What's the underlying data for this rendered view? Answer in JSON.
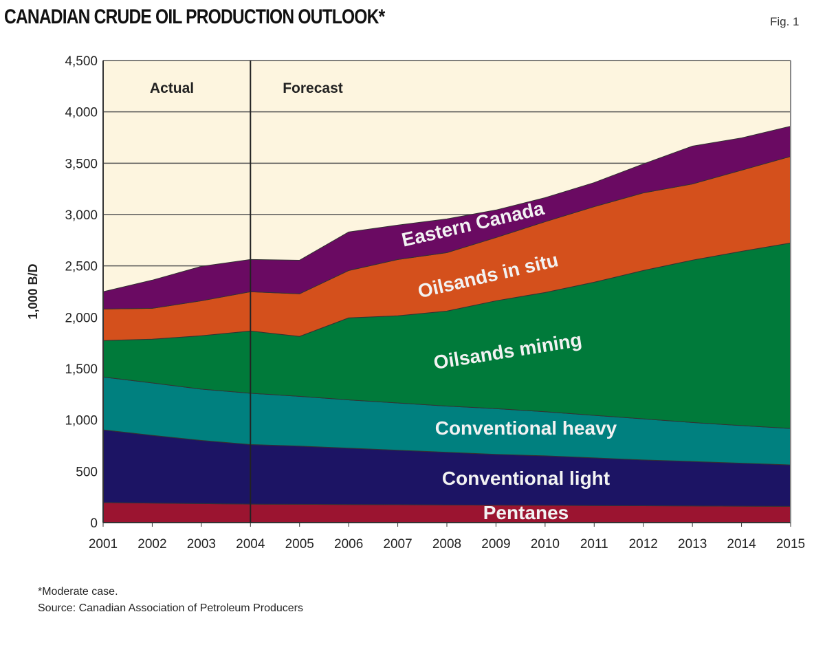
{
  "chart_data": {
    "type": "area",
    "stacked": true,
    "title": "CANADIAN CRUDE OIL PRODUCTION OUTLOOK*",
    "figure_label": "Fig. 1",
    "ylabel": "1,000 B/D",
    "xlabel": "",
    "ylim": [
      0,
      4500
    ],
    "yticks": [
      "0",
      "500",
      "1,000",
      "1,500",
      "2,000",
      "2,500",
      "3,000",
      "3,500",
      "4,000",
      "4,500"
    ],
    "x": [
      "2001",
      "2002",
      "2003",
      "2004",
      "2005",
      "2006",
      "2007",
      "2008",
      "2009",
      "2010",
      "2011",
      "2012",
      "2013",
      "2014",
      "2015"
    ],
    "grid": true,
    "background_color": "#fdf5df",
    "annotations": {
      "actual": "Actual",
      "forecast": "Forecast",
      "divider_year": "2004"
    },
    "series": [
      {
        "name": "Pentanes",
        "color": "#9b1430",
        "values": [
          195,
          190,
          185,
          180,
          178,
          176,
          174,
          172,
          170,
          168,
          166,
          164,
          162,
          160,
          158
        ]
      },
      {
        "name": "Conventional light",
        "color": "#1c1464",
        "values": [
          708,
          660,
          615,
          580,
          567,
          549,
          531,
          513,
          495,
          482,
          464,
          446,
          433,
          418,
          404
        ]
      },
      {
        "name": "Conventional heavy",
        "color": "#00807f",
        "values": [
          515,
          510,
          500,
          500,
          485,
          470,
          460,
          450,
          445,
          430,
          415,
          400,
          380,
          367,
          355
        ]
      },
      {
        "name": "Oilsands mining",
        "color": "#007a3a",
        "values": [
          355,
          426,
          520,
          606,
          583,
          799,
          849,
          925,
          1050,
          1161,
          1296,
          1445,
          1581,
          1697,
          1806
        ]
      },
      {
        "name": "Oilsands in situ",
        "color": "#d4501c",
        "values": [
          307,
          301,
          340,
          382,
          415,
          461,
          548,
          569,
          616,
          689,
          736,
          756,
          742,
          790,
          843
        ]
      },
      {
        "name": "Eastern Canada",
        "color": "#6a0a62",
        "values": [
          168,
          274,
          335,
          314,
          327,
          375,
          335,
          328,
          268,
          234,
          234,
          281,
          368,
          314,
          294
        ]
      }
    ],
    "footnotes": [
      "*Moderate case.",
      "Source: Canadian Association of Petroleum Producers"
    ]
  }
}
